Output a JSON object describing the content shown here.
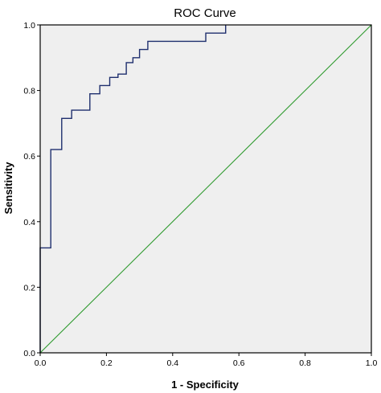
{
  "chart_data": {
    "type": "line",
    "title": "ROC Curve",
    "xlabel": "1 - Specificity",
    "ylabel": "Sensitivity",
    "xlim": [
      0.0,
      1.0
    ],
    "ylim": [
      0.0,
      1.0
    ],
    "x_ticks": [
      "0.0",
      "0.2",
      "0.4",
      "0.6",
      "0.8",
      "1.0"
    ],
    "y_ticks": [
      "0.0",
      "0.2",
      "0.4",
      "0.6",
      "0.8",
      "1.0"
    ],
    "grid": false,
    "legend": "none",
    "series": [
      {
        "role": "roc-curve",
        "color": "#1f2f6e",
        "x": [
          0.0,
          0.0,
          0.032,
          0.032,
          0.065,
          0.065,
          0.095,
          0.095,
          0.15,
          0.15,
          0.18,
          0.18,
          0.21,
          0.21,
          0.235,
          0.235,
          0.26,
          0.26,
          0.28,
          0.28,
          0.3,
          0.3,
          0.325,
          0.325,
          0.5,
          0.5,
          0.56,
          0.56
        ],
        "y": [
          0.0,
          0.32,
          0.32,
          0.62,
          0.62,
          0.715,
          0.715,
          0.74,
          0.74,
          0.79,
          0.79,
          0.815,
          0.815,
          0.84,
          0.84,
          0.85,
          0.85,
          0.885,
          0.885,
          0.9,
          0.9,
          0.925,
          0.925,
          0.95,
          0.95,
          0.975,
          0.975,
          1.0
        ]
      },
      {
        "role": "reference-line",
        "color": "#2e9a2e",
        "x": [
          0.0,
          1.0
        ],
        "y": [
          0.0,
          1.0
        ]
      }
    ],
    "colors": {
      "plot_background": "#efefef",
      "frame": "#000000"
    }
  }
}
